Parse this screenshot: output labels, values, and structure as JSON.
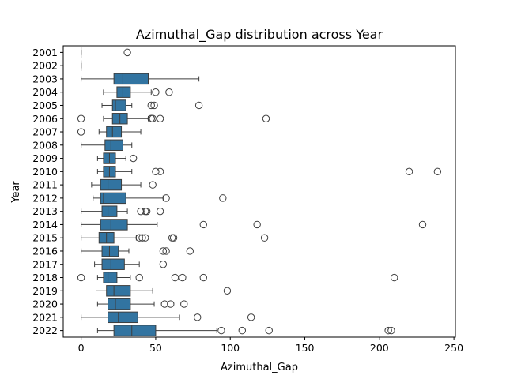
{
  "chart_data": {
    "type": "boxplot",
    "orientation": "horizontal",
    "title": "Azimuthal_Gap distribution across Year",
    "xlabel": "Azimuthal_Gap",
    "ylabel": "Year",
    "xlim": [
      -12,
      251
    ],
    "xticks": [
      0,
      50,
      100,
      150,
      200,
      250
    ],
    "box_color": "#3274a1",
    "edge_color": "#3d3d3d",
    "grid": false,
    "categories": [
      "2001",
      "2002",
      "2003",
      "2004",
      "2005",
      "2006",
      "2007",
      "2008",
      "2009",
      "2010",
      "2011",
      "2012",
      "2013",
      "2014",
      "2015",
      "2016",
      "2017",
      "2018",
      "2019",
      "2020",
      "2021",
      "2022"
    ],
    "boxes": [
      {
        "year": "2001",
        "whislo": 0,
        "q1": 0,
        "med": 0,
        "q3": 0,
        "whishi": 0,
        "fliers": [
          31
        ]
      },
      {
        "year": "2002",
        "whislo": 0,
        "q1": 0,
        "med": 0,
        "q3": 0,
        "whishi": 0,
        "fliers": []
      },
      {
        "year": "2003",
        "whislo": 0,
        "q1": 22,
        "med": 28,
        "q3": 45,
        "whishi": 79,
        "fliers": []
      },
      {
        "year": "2004",
        "whislo": 15,
        "q1": 24,
        "med": 28,
        "q3": 33,
        "whishi": 47,
        "fliers": [
          50,
          59
        ]
      },
      {
        "year": "2005",
        "whislo": 14,
        "q1": 21,
        "med": 23,
        "q3": 30,
        "whishi": 34,
        "fliers": [
          47,
          49,
          79
        ]
      },
      {
        "year": "2006",
        "whislo": 15,
        "q1": 21,
        "med": 26,
        "q3": 31,
        "whishi": 45,
        "fliers": [
          0,
          47,
          48,
          53,
          124
        ]
      },
      {
        "year": "2007",
        "whislo": 12,
        "q1": 17,
        "med": 21,
        "q3": 27,
        "whishi": 40,
        "fliers": [
          0
        ]
      },
      {
        "year": "2008",
        "whislo": 0,
        "q1": 16,
        "med": 20,
        "q3": 28,
        "whishi": 34,
        "fliers": []
      },
      {
        "year": "2009",
        "whislo": 11,
        "q1": 15,
        "med": 19,
        "q3": 23,
        "whishi": 30,
        "fliers": [
          35
        ]
      },
      {
        "year": "2010",
        "whislo": 11,
        "q1": 15,
        "med": 19,
        "q3": 23,
        "whishi": 34,
        "fliers": [
          50,
          53,
          220,
          239
        ]
      },
      {
        "year": "2011",
        "whislo": 7,
        "q1": 13,
        "med": 18,
        "q3": 27,
        "whishi": 40,
        "fliers": [
          48
        ]
      },
      {
        "year": "2012",
        "whislo": 8,
        "q1": 13,
        "med": 15,
        "q3": 30,
        "whishi": 55,
        "fliers": [
          57,
          95
        ]
      },
      {
        "year": "2013",
        "whislo": 0,
        "q1": 14,
        "med": 18,
        "q3": 24,
        "whishi": 31,
        "fliers": [
          40,
          43,
          44,
          53
        ]
      },
      {
        "year": "2014",
        "whislo": 0,
        "q1": 13,
        "med": 20,
        "q3": 31,
        "whishi": 51,
        "fliers": [
          82,
          118,
          229
        ]
      },
      {
        "year": "2015",
        "whislo": 0,
        "q1": 12,
        "med": 17,
        "q3": 22,
        "whishi": 37,
        "fliers": [
          39,
          41,
          43,
          61,
          62,
          123
        ]
      },
      {
        "year": "2016",
        "whislo": 0,
        "q1": 14,
        "med": 19,
        "q3": 25,
        "whishi": 32,
        "fliers": [
          55,
          57,
          73
        ]
      },
      {
        "year": "2017",
        "whislo": 9,
        "q1": 14,
        "med": 20,
        "q3": 29,
        "whishi": 39,
        "fliers": [
          55
        ]
      },
      {
        "year": "2018",
        "whislo": 11,
        "q1": 15,
        "med": 18,
        "q3": 24,
        "whishi": 33,
        "fliers": [
          0,
          39,
          63,
          68,
          82,
          210
        ]
      },
      {
        "year": "2019",
        "whislo": 10,
        "q1": 17,
        "med": 22,
        "q3": 33,
        "whishi": 48,
        "fliers": [
          98
        ]
      },
      {
        "year": "2020",
        "whislo": 11,
        "q1": 18,
        "med": 23,
        "q3": 33,
        "whishi": 49,
        "fliers": [
          56,
          60,
          69
        ]
      },
      {
        "year": "2021",
        "whislo": 0,
        "q1": 18,
        "med": 25,
        "q3": 38,
        "whishi": 66,
        "fliers": [
          78,
          114
        ]
      },
      {
        "year": "2022",
        "whislo": 11,
        "q1": 22,
        "med": 34,
        "q3": 50,
        "whishi": 91,
        "fliers": [
          94,
          108,
          126,
          206,
          208
        ]
      }
    ]
  }
}
